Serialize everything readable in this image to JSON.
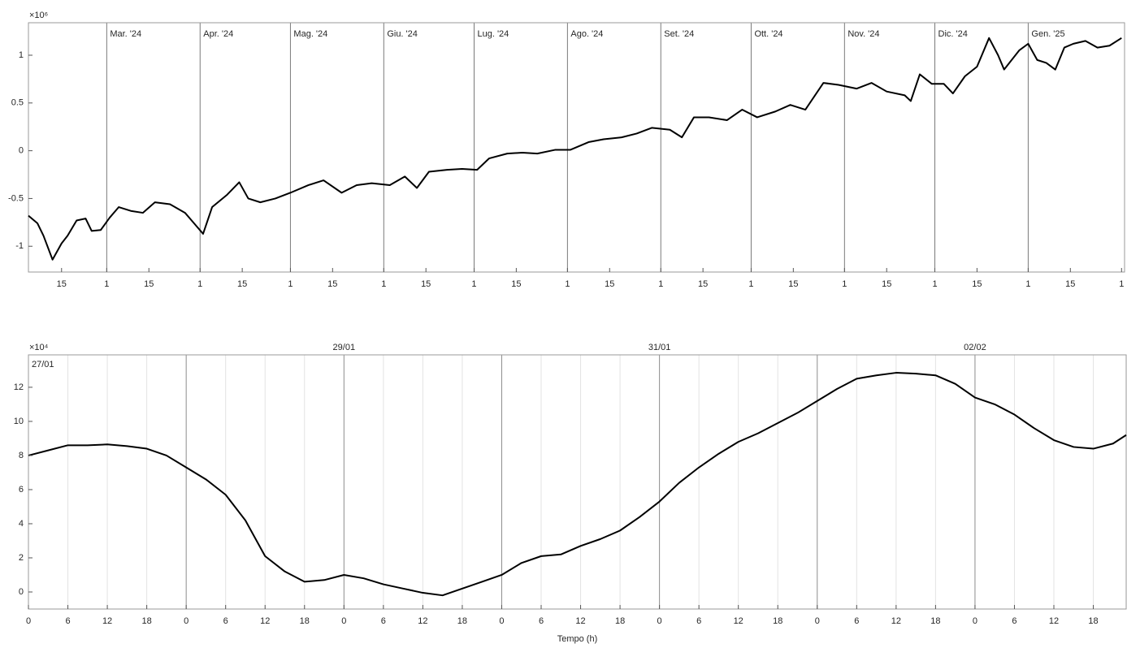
{
  "chart_data": [
    {
      "type": "line",
      "y_exponent": "×10⁶",
      "color": "#000000",
      "grid": false,
      "period_label_position": "inside",
      "x": [
        "2024-02-04",
        "2024-02-07",
        "2024-02-09",
        "2024-02-12",
        "2024-02-15",
        "2024-02-17",
        "2024-02-20",
        "2024-02-23",
        "2024-02-25",
        "2024-02-28",
        "2024-03-02",
        "2024-03-05",
        "2024-03-09",
        "2024-03-13",
        "2024-03-17",
        "2024-03-22",
        "2024-03-27",
        "2024-03-30",
        "2024-04-02",
        "2024-04-05",
        "2024-04-10",
        "2024-04-14",
        "2024-04-17",
        "2024-04-21",
        "2024-04-26",
        "2024-05-01",
        "2024-05-07",
        "2024-05-12",
        "2024-05-18",
        "2024-05-23",
        "2024-05-28",
        "2024-06-03",
        "2024-06-08",
        "2024-06-12",
        "2024-06-16",
        "2024-06-22",
        "2024-06-27",
        "2024-07-02",
        "2024-07-06",
        "2024-07-12",
        "2024-07-17",
        "2024-07-22",
        "2024-07-28",
        "2024-08-02",
        "2024-08-08",
        "2024-08-13",
        "2024-08-19",
        "2024-08-24",
        "2024-08-29",
        "2024-09-04",
        "2024-09-08",
        "2024-09-12",
        "2024-09-17",
        "2024-09-23",
        "2024-09-28",
        "2024-10-03",
        "2024-10-09",
        "2024-10-14",
        "2024-10-19",
        "2024-10-25",
        "2024-10-30",
        "2024-11-05",
        "2024-11-10",
        "2024-11-15",
        "2024-11-21",
        "2024-11-23",
        "2024-11-26",
        "2024-11-30",
        "2024-12-04",
        "2024-12-07",
        "2024-12-11",
        "2024-12-15",
        "2024-12-19",
        "2024-12-22",
        "2024-12-24",
        "2024-12-29",
        "2025-01-01",
        "2025-01-04",
        "2025-01-07",
        "2025-01-10",
        "2025-01-13",
        "2025-01-16",
        "2025-01-20",
        "2025-01-24",
        "2025-01-28",
        "2025-02-01"
      ],
      "values": [
        -0.68,
        -0.76,
        -0.89,
        -1.14,
        -0.97,
        -0.89,
        -0.73,
        -0.71,
        -0.84,
        -0.83,
        -0.7,
        -0.59,
        -0.63,
        -0.65,
        -0.54,
        -0.56,
        -0.65,
        -0.76,
        -0.87,
        -0.59,
        -0.46,
        -0.33,
        -0.5,
        -0.54,
        -0.5,
        -0.44,
        -0.36,
        -0.31,
        -0.44,
        -0.36,
        -0.34,
        -0.36,
        -0.27,
        -0.39,
        -0.22,
        -0.2,
        -0.19,
        -0.2,
        -0.08,
        -0.03,
        -0.02,
        -0.03,
        0.01,
        0.01,
        0.09,
        0.12,
        0.14,
        0.18,
        0.24,
        0.22,
        0.14,
        0.35,
        0.35,
        0.32,
        0.43,
        0.35,
        0.41,
        0.48,
        0.43,
        0.71,
        0.69,
        0.65,
        0.71,
        0.62,
        0.58,
        0.52,
        0.8,
        0.7,
        0.7,
        0.6,
        0.78,
        0.88,
        1.18,
        1.0,
        0.85,
        1.05,
        1.12,
        0.95,
        0.92,
        0.85,
        1.08,
        1.12,
        1.15,
        1.08,
        1.1,
        1.18
      ],
      "xlim": [
        "2024-02-04",
        "2025-02-02"
      ],
      "ylim": [
        -1.27,
        1.34
      ],
      "yticks": [
        -1,
        -0.5,
        0,
        0.5,
        1
      ],
      "xticks": [
        {
          "value": "2024-02-15",
          "label": "15"
        },
        {
          "value": "2024-03-01",
          "label": "1"
        },
        {
          "value": "2024-03-15",
          "label": "15"
        },
        {
          "value": "2024-04-01",
          "label": "1"
        },
        {
          "value": "2024-04-15",
          "label": "15"
        },
        {
          "value": "2024-05-01",
          "label": "1"
        },
        {
          "value": "2024-05-15",
          "label": "15"
        },
        {
          "value": "2024-06-01",
          "label": "1"
        },
        {
          "value": "2024-06-15",
          "label": "15"
        },
        {
          "value": "2024-07-01",
          "label": "1"
        },
        {
          "value": "2024-07-15",
          "label": "15"
        },
        {
          "value": "2024-08-01",
          "label": "1"
        },
        {
          "value": "2024-08-15",
          "label": "15"
        },
        {
          "value": "2024-09-01",
          "label": "1"
        },
        {
          "value": "2024-09-15",
          "label": "15"
        },
        {
          "value": "2024-10-01",
          "label": "1"
        },
        {
          "value": "2024-10-15",
          "label": "15"
        },
        {
          "value": "2024-11-01",
          "label": "1"
        },
        {
          "value": "2024-11-15",
          "label": "15"
        },
        {
          "value": "2024-12-01",
          "label": "1"
        },
        {
          "value": "2024-12-15",
          "label": "15"
        },
        {
          "value": "2025-01-01",
          "label": "1"
        },
        {
          "value": "2025-01-15",
          "label": "15"
        },
        {
          "value": "2025-02-01",
          "label": "1"
        }
      ],
      "period_labels": [
        {
          "value": "2024-03-01",
          "label": "Mar. '24"
        },
        {
          "value": "2024-04-01",
          "label": "Apr. '24"
        },
        {
          "value": "2024-05-01",
          "label": "Mag. '24"
        },
        {
          "value": "2024-06-01",
          "label": "Giu. '24"
        },
        {
          "value": "2024-07-01",
          "label": "Lug. '24"
        },
        {
          "value": "2024-08-01",
          "label": "Ago. '24"
        },
        {
          "value": "2024-09-01",
          "label": "Set. '24"
        },
        {
          "value": "2024-10-01",
          "label": "Ott. '24"
        },
        {
          "value": "2024-11-01",
          "label": "Nov. '24"
        },
        {
          "value": "2024-12-01",
          "label": "Dic. '24"
        },
        {
          "value": "2025-01-01",
          "label": "Gen. '25"
        }
      ]
    },
    {
      "type": "line",
      "y_exponent": "×10⁴",
      "xlabel": "Tempo (h)",
      "color": "#000000",
      "grid": true,
      "period_label_position": "above",
      "x": [
        "27/01 00:00",
        "27/01 03:00",
        "27/01 06:00",
        "27/01 09:00",
        "27/01 12:00",
        "27/01 15:00",
        "27/01 18:00",
        "27/01 21:00",
        "28/01 00:00",
        "28/01 03:00",
        "28/01 06:00",
        "28/01 09:00",
        "28/01 12:00",
        "28/01 15:00",
        "28/01 18:00",
        "28/01 21:00",
        "29/01 00:00",
        "29/01 03:00",
        "29/01 06:00",
        "29/01 09:00",
        "29/01 12:00",
        "29/01 15:00",
        "29/01 18:00",
        "29/01 21:00",
        "30/01 00:00",
        "30/01 03:00",
        "30/01 06:00",
        "30/01 09:00",
        "30/01 12:00",
        "30/01 15:00",
        "30/01 18:00",
        "30/01 21:00",
        "31/01 00:00",
        "31/01 03:00",
        "31/01 06:00",
        "31/01 09:00",
        "31/01 12:00",
        "31/01 15:00",
        "31/01 18:00",
        "31/01 21:00",
        "01/02 00:00",
        "01/02 03:00",
        "01/02 06:00",
        "01/02 09:00",
        "01/02 12:00",
        "01/02 15:00",
        "01/02 18:00",
        "01/02 21:00",
        "02/02 00:00",
        "02/02 03:00",
        "02/02 06:00",
        "02/02 09:00",
        "02/02 12:00",
        "02/02 15:00",
        "02/02 18:00",
        "02/02 21:00",
        "02/02 23:00"
      ],
      "values": [
        8.0,
        8.3,
        8.6,
        8.6,
        8.65,
        8.55,
        8.4,
        8.0,
        7.3,
        6.6,
        5.7,
        4.2,
        2.1,
        1.2,
        0.6,
        0.7,
        1.0,
        0.8,
        0.45,
        0.2,
        -0.05,
        -0.2,
        0.2,
        0.6,
        1.0,
        1.7,
        2.1,
        2.2,
        2.7,
        3.1,
        3.6,
        4.4,
        5.3,
        6.4,
        7.3,
        8.1,
        8.8,
        9.3,
        9.9,
        10.5,
        11.2,
        11.9,
        12.5,
        12.7,
        12.85,
        12.8,
        12.7,
        12.2,
        11.4,
        11.0,
        10.4,
        9.6,
        8.9,
        8.5,
        8.4,
        8.7,
        9.2
      ],
      "xlim": [
        "27/01 00:00",
        "02/02 23:00"
      ],
      "ylim": [
        -1,
        13.9
      ],
      "yticks": [
        0,
        2,
        4,
        6,
        8,
        10,
        12
      ],
      "xticks": [
        {
          "value": "27/01 00:00",
          "label": "0"
        },
        {
          "value": "27/01 06:00",
          "label": "6"
        },
        {
          "value": "27/01 12:00",
          "label": "12"
        },
        {
          "value": "27/01 18:00",
          "label": "18"
        },
        {
          "value": "28/01 00:00",
          "label": "0"
        },
        {
          "value": "28/01 06:00",
          "label": "6"
        },
        {
          "value": "28/01 12:00",
          "label": "12"
        },
        {
          "value": "28/01 18:00",
          "label": "18"
        },
        {
          "value": "29/01 00:00",
          "label": "0"
        },
        {
          "value": "29/01 06:00",
          "label": "6"
        },
        {
          "value": "29/01 12:00",
          "label": "12"
        },
        {
          "value": "29/01 18:00",
          "label": "18"
        },
        {
          "value": "30/01 00:00",
          "label": "0"
        },
        {
          "value": "30/01 06:00",
          "label": "6"
        },
        {
          "value": "30/01 12:00",
          "label": "12"
        },
        {
          "value": "30/01 18:00",
          "label": "18"
        },
        {
          "value": "31/01 00:00",
          "label": "0"
        },
        {
          "value": "31/01 06:00",
          "label": "6"
        },
        {
          "value": "31/01 12:00",
          "label": "12"
        },
        {
          "value": "31/01 18:00",
          "label": "18"
        },
        {
          "value": "01/02 00:00",
          "label": "0"
        },
        {
          "value": "01/02 06:00",
          "label": "6"
        },
        {
          "value": "01/02 12:00",
          "label": "12"
        },
        {
          "value": "01/02 18:00",
          "label": "18"
        },
        {
          "value": "02/02 00:00",
          "label": "0"
        },
        {
          "value": "02/02 06:00",
          "label": "6"
        },
        {
          "value": "02/02 12:00",
          "label": "12"
        },
        {
          "value": "02/02 18:00",
          "label": "18"
        }
      ],
      "period_labels": [
        {
          "value": "27/01 00:00",
          "label": "27/01"
        },
        {
          "value": "29/01 00:00",
          "label": "29/01"
        },
        {
          "value": "31/01 00:00",
          "label": "31/01"
        },
        {
          "value": "02/02 00:00",
          "label": "02/02"
        }
      ]
    }
  ]
}
